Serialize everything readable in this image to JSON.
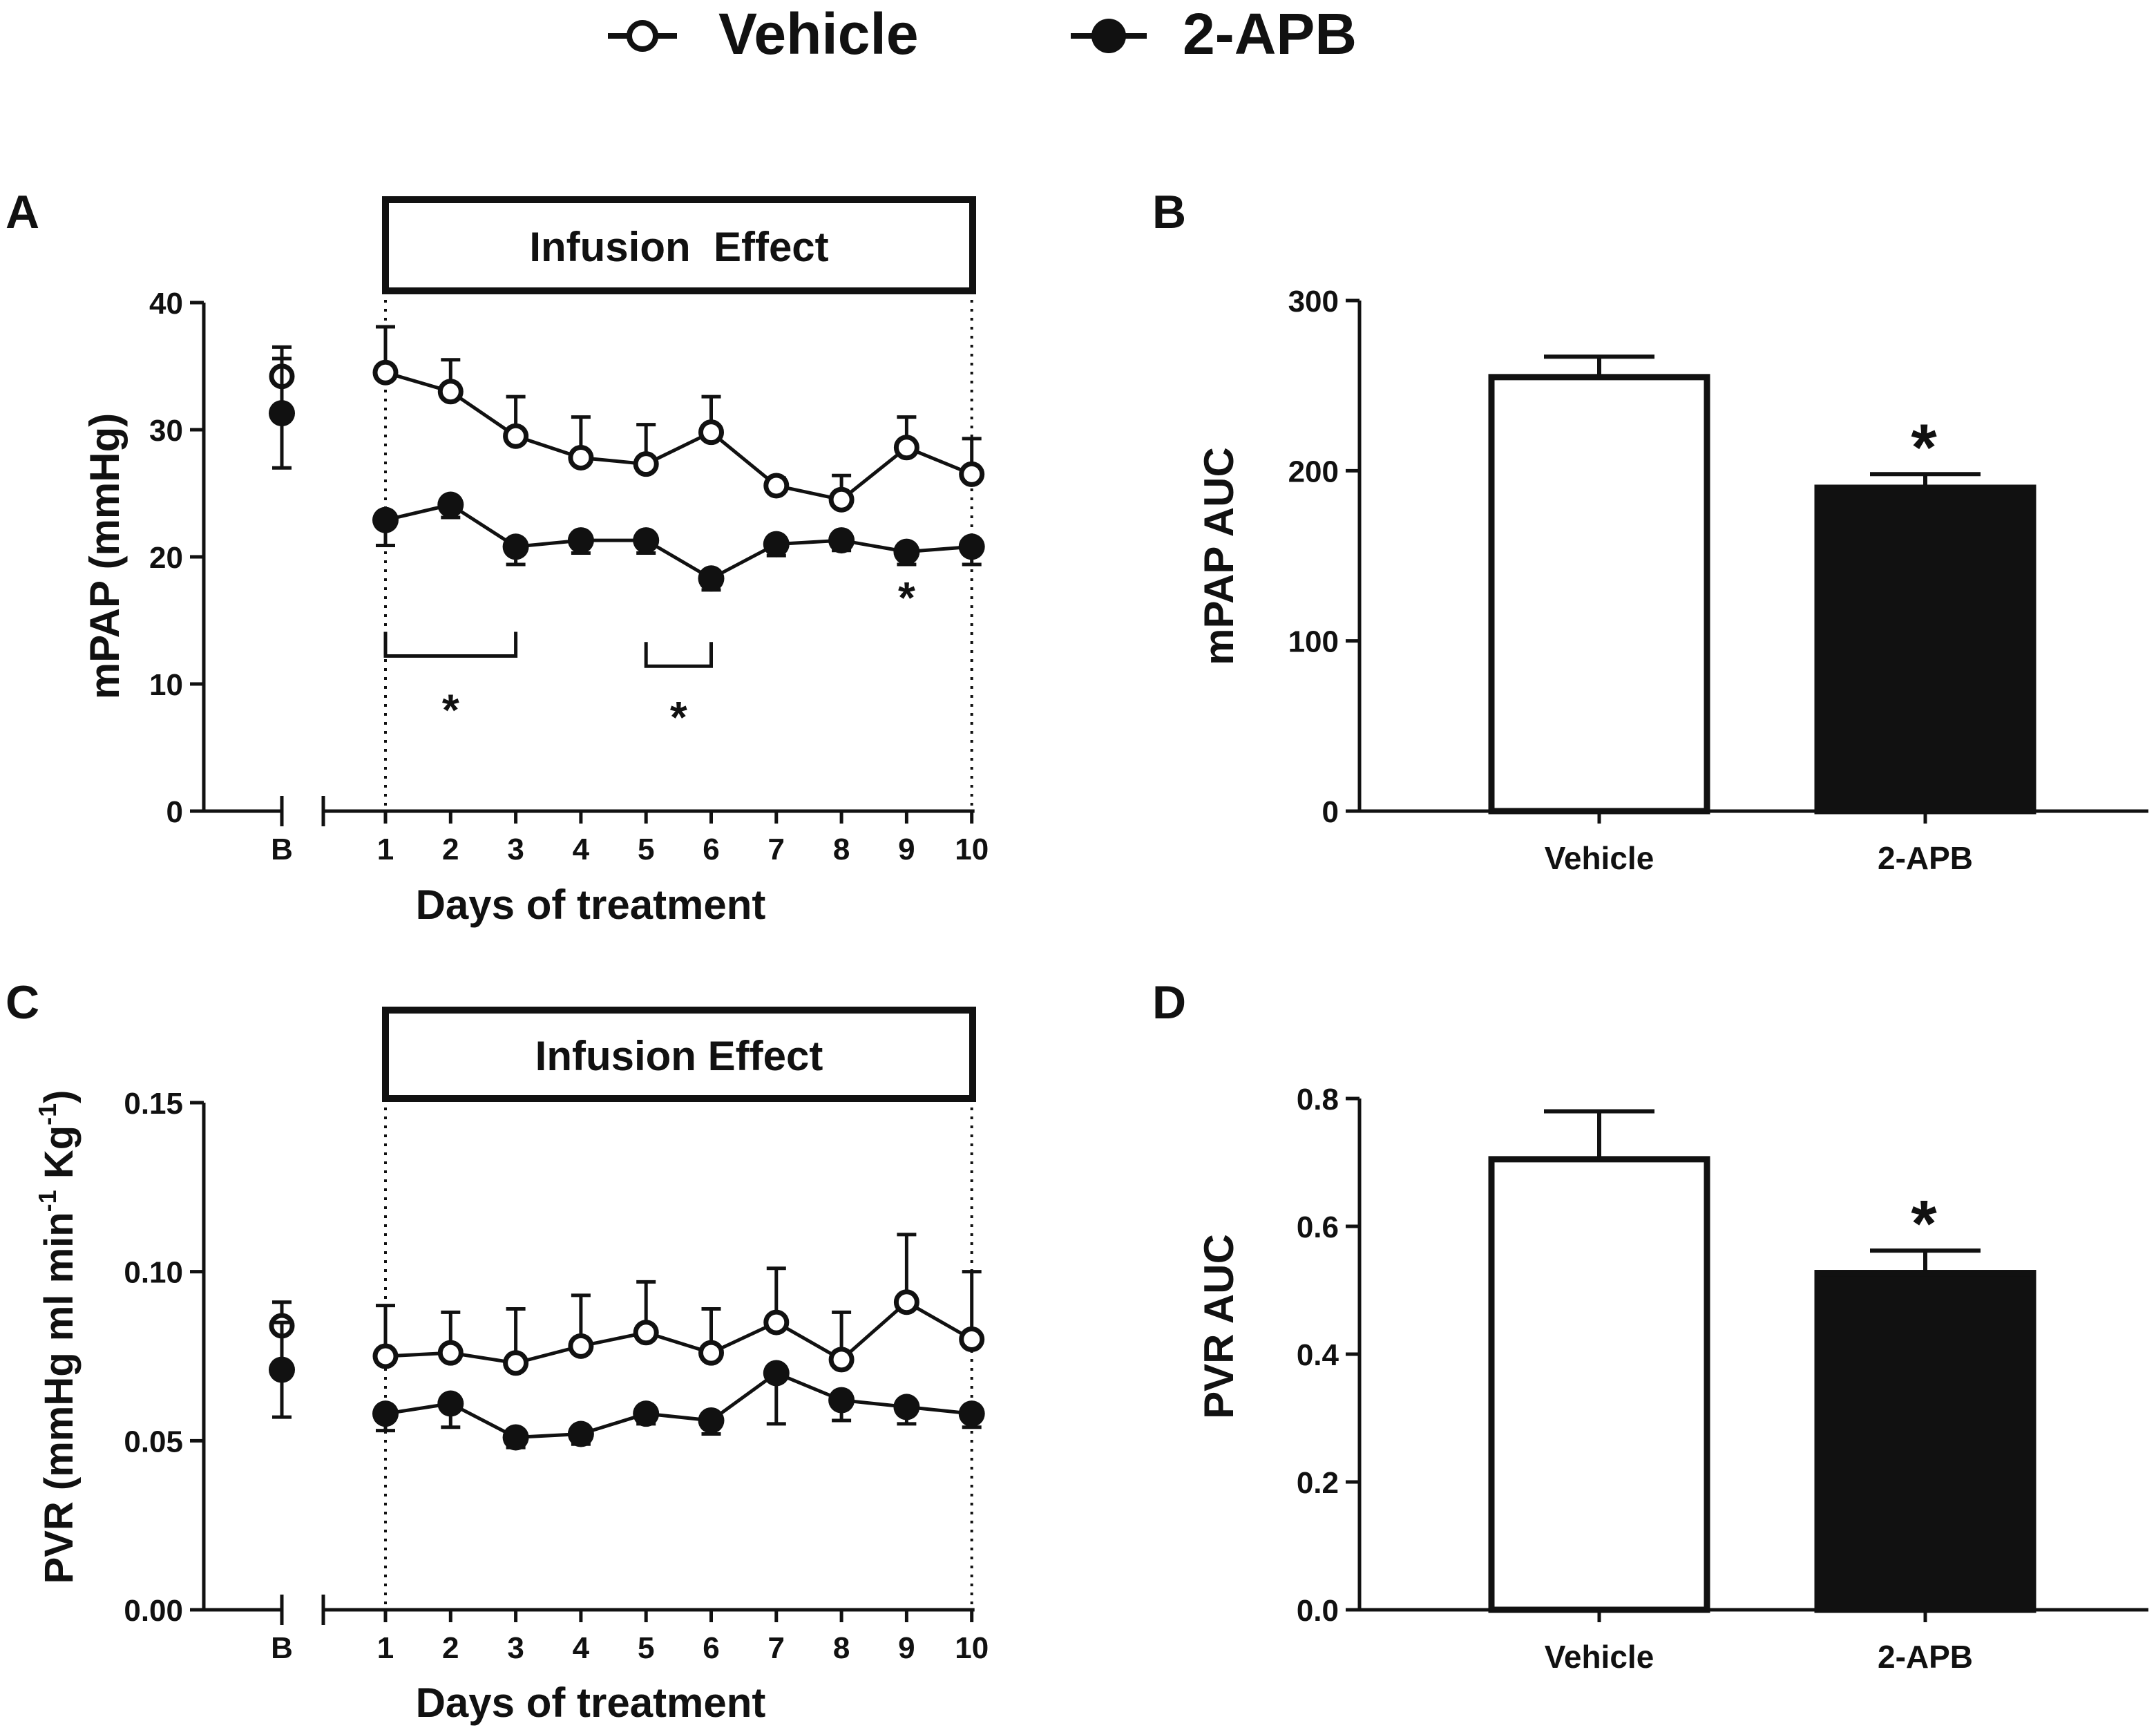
{
  "legend": {
    "vehicle_label": "Vehicle",
    "apb_label": "2-APB"
  },
  "chart_data": [
    {
      "panel": "A",
      "type": "line",
      "box_label": "Infusion  Effect",
      "xlabel": "Days of treatment",
      "ylabel": "mPAP (mmHg)",
      "ylim": [
        0,
        40
      ],
      "yticks": [
        "0",
        "10",
        "20",
        "30",
        "40"
      ],
      "categories": [
        "B",
        "1",
        "2",
        "3",
        "4",
        "5",
        "6",
        "7",
        "8",
        "9",
        "10"
      ],
      "series": [
        {
          "name": "Vehicle",
          "marker": "open",
          "values": [
            34.2,
            34.5,
            33.0,
            29.5,
            27.8,
            27.3,
            29.8,
            25.6,
            24.5,
            28.6,
            26.5
          ],
          "errors": [
            2.3,
            3.6,
            2.5,
            3.1,
            3.2,
            3.1,
            2.8,
            0.6,
            1.9,
            2.4,
            2.8
          ]
        },
        {
          "name": "2-APB",
          "marker": "filled",
          "values": [
            31.3,
            22.9,
            24.1,
            20.8,
            21.3,
            21.3,
            18.3,
            21.0,
            21.3,
            20.4,
            20.8
          ],
          "errors": [
            4.3,
            2.0,
            1.0,
            1.4,
            1.0,
            1.0,
            0.9,
            0.9,
            0.8,
            1.0,
            1.4
          ]
        }
      ],
      "significance": [
        {
          "label": "*",
          "bracket": [
            1,
            3
          ]
        },
        {
          "label": "*",
          "bracket": [
            5,
            6
          ]
        },
        {
          "label": "*",
          "day": 9
        }
      ]
    },
    {
      "panel": "B",
      "type": "bar",
      "ylabel": "mPAP AUC",
      "ylim": [
        0,
        300
      ],
      "yticks": [
        "0",
        "100",
        "200",
        "300"
      ],
      "categories": [
        "Vehicle",
        "2-APB"
      ],
      "values": [
        255,
        190
      ],
      "errors": [
        12,
        8
      ],
      "significance": [
        {
          "label": "*",
          "bar": "2-APB"
        }
      ]
    },
    {
      "panel": "C",
      "type": "line",
      "box_label": "Infusion Effect",
      "xlabel": "Days of treatment",
      "ylabel": "PVR (mmHg ml min",
      "ylabel_sup1": "-1",
      "ylabel_mid": " Kg",
      "ylabel_sup2": "-1",
      "ylabel_end": ")",
      "ylim": [
        0,
        0.15
      ],
      "yticks": [
        "0.00",
        "0.05",
        "0.10",
        "0.15"
      ],
      "categories": [
        "B",
        "1",
        "2",
        "3",
        "4",
        "5",
        "6",
        "7",
        "8",
        "9",
        "10"
      ],
      "series": [
        {
          "name": "Vehicle",
          "marker": "open",
          "values": [
            0.084,
            0.075,
            0.076,
            0.073,
            0.078,
            0.082,
            0.076,
            0.085,
            0.074,
            0.091,
            0.08
          ],
          "errors": [
            0.007,
            0.015,
            0.012,
            0.016,
            0.015,
            0.015,
            0.013,
            0.016,
            0.014,
            0.02,
            0.02
          ]
        },
        {
          "name": "2-APB",
          "marker": "filled",
          "values": [
            0.071,
            0.058,
            0.061,
            0.051,
            0.052,
            0.058,
            0.056,
            0.07,
            0.062,
            0.06,
            0.058
          ],
          "errors": [
            0.014,
            0.005,
            0.007,
            0.003,
            0.003,
            0.003,
            0.004,
            0.015,
            0.006,
            0.005,
            0.004
          ]
        }
      ]
    },
    {
      "panel": "D",
      "type": "bar",
      "ylabel": "PVR AUC",
      "ylim": [
        0,
        0.8
      ],
      "yticks": [
        "0.0",
        "0.2",
        "0.4",
        "0.6",
        "0.8"
      ],
      "categories": [
        "Vehicle",
        "2-APB"
      ],
      "values": [
        0.705,
        0.527
      ],
      "errors": [
        0.075,
        0.035
      ],
      "significance": [
        {
          "label": "*",
          "bar": "2-APB"
        }
      ]
    }
  ]
}
